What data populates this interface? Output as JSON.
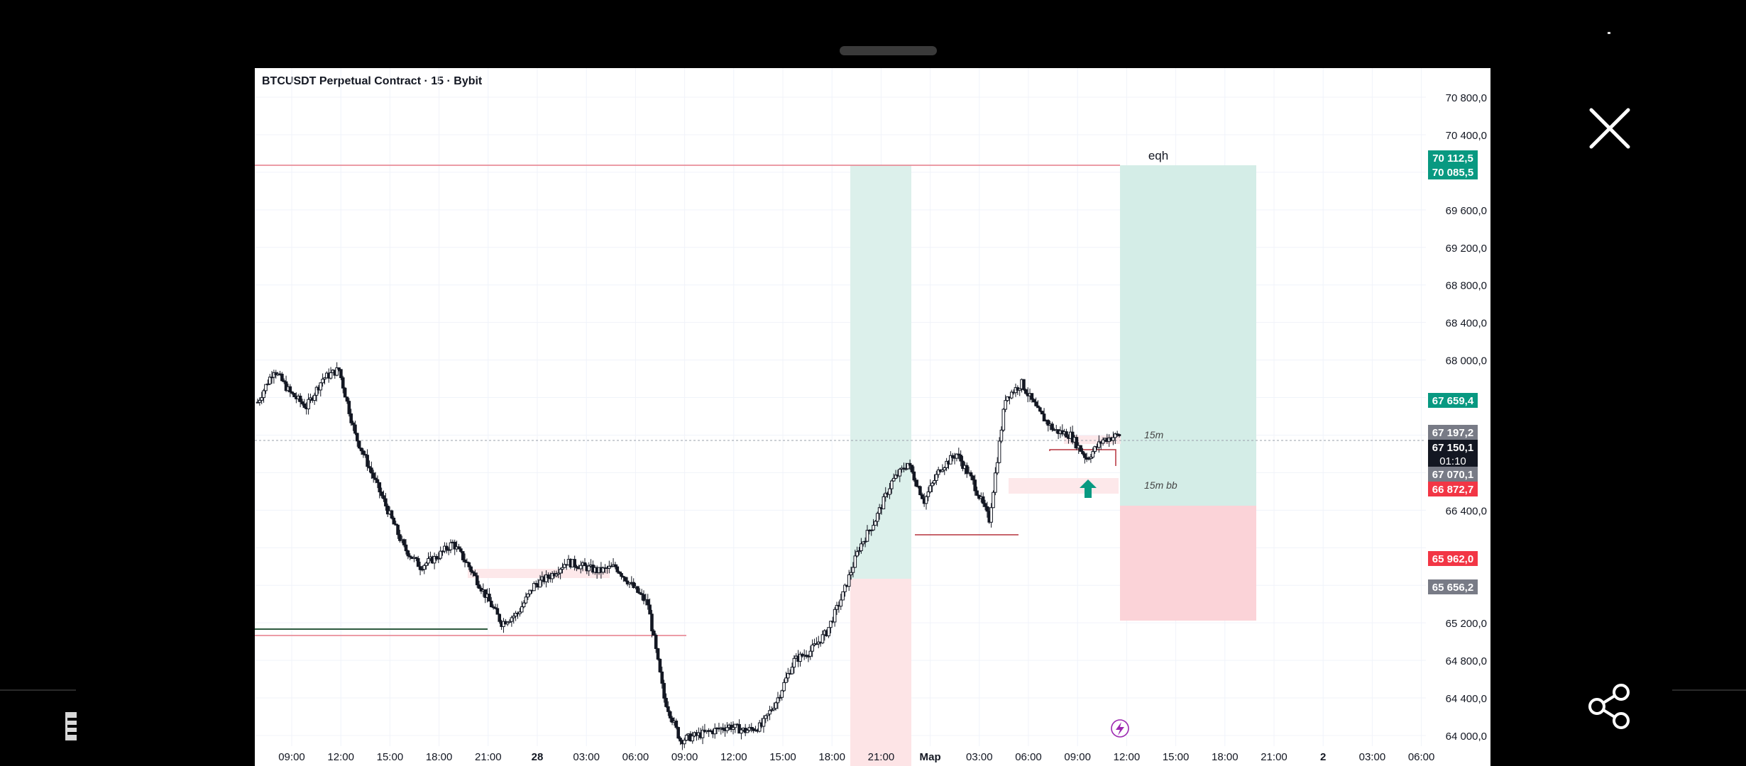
{
  "chart": {
    "title": "BTCUSDT Perpetual Contract · 15 · Bybit",
    "price_ticks": [
      "70 800,0",
      "70 400,0",
      "69 600,0",
      "69 200,0",
      "68 800,0",
      "68 400,0",
      "68 000,0",
      "66 400,0",
      "65 200,0",
      "64 800,0",
      "64 400,0",
      "64 000,0"
    ],
    "time_ticks": [
      "09:00",
      "12:00",
      "15:00",
      "18:00",
      "21:00",
      "28",
      "03:00",
      "06:00",
      "09:00",
      "12:00",
      "15:00",
      "18:00",
      "21:00",
      "Мар",
      "03:00",
      "06:00",
      "09:00",
      "12:00",
      "15:00",
      "18:00",
      "21:00",
      "2",
      "03:00",
      "06:00"
    ],
    "price_badges": [
      {
        "label": "70 112,5",
        "color": "#089981"
      },
      {
        "label": "70 085,5",
        "color": "#089981"
      },
      {
        "label": "67 659,4",
        "color": "#089981"
      },
      {
        "label": "67 197,2",
        "color": "#787b86"
      },
      {
        "label": "67 150,1",
        "color": "#131722",
        "countdown": "01:10"
      },
      {
        "label": "67 070,1",
        "color": "#787b86"
      },
      {
        "label": "66 872,7",
        "color": "#f23645"
      },
      {
        "label": "65 962,0",
        "color": "#f23645"
      },
      {
        "label": "65 656,2",
        "color": "#787b86"
      }
    ],
    "annotations": {
      "eqh": "eqh",
      "m15": "15m",
      "m15bb": "15m bb"
    },
    "colors": {
      "up": "#089981",
      "down": "#f23645",
      "candle": "#131722",
      "target_zone": "#d7efe9",
      "stop_zone": "#fadadd"
    }
  },
  "chart_data": {
    "type": "candlestick",
    "title": "BTCUSDT Perpetual Contract · 15 · Bybit",
    "y_axis_ticks": [
      64000,
      64400,
      64800,
      65200,
      65600,
      66000,
      66400,
      66800,
      67200,
      67600,
      68000,
      68400,
      68800,
      69200,
      69600,
      70000,
      70400,
      70800
    ],
    "ylim": [
      63950,
      71150
    ],
    "x_axis_ticks": [
      "09:00",
      "12:00",
      "15:00",
      "18:00",
      "21:00",
      "28",
      "03:00",
      "06:00",
      "09:00",
      "12:00",
      "15:00",
      "18:00",
      "21:00",
      "Мар",
      "03:00",
      "06:00",
      "09:00",
      "12:00",
      "15:00",
      "18:00",
      "21:00",
      "2",
      "03:00",
      "06:00"
    ],
    "close_path_approx": [
      [
        0,
        67550
      ],
      [
        8,
        67900
      ],
      [
        16,
        67650
      ],
      [
        24,
        67500
      ],
      [
        32,
        67800
      ],
      [
        40,
        67900
      ],
      [
        48,
        67200
      ],
      [
        56,
        66800
      ],
      [
        64,
        66400
      ],
      [
        72,
        66000
      ],
      [
        80,
        65800
      ],
      [
        88,
        65900
      ],
      [
        96,
        66050
      ],
      [
        104,
        65800
      ],
      [
        112,
        65500
      ],
      [
        120,
        65200
      ],
      [
        128,
        65300
      ],
      [
        136,
        65600
      ],
      [
        144,
        65700
      ],
      [
        152,
        65850
      ],
      [
        160,
        65800
      ],
      [
        168,
        65750
      ],
      [
        176,
        65800
      ],
      [
        184,
        65600
      ],
      [
        192,
        65400
      ],
      [
        200,
        64400
      ],
      [
        208,
        63950
      ],
      [
        216,
        64000
      ],
      [
        224,
        64050
      ],
      [
        232,
        64100
      ],
      [
        240,
        64050
      ],
      [
        248,
        64100
      ],
      [
        256,
        64400
      ],
      [
        264,
        64800
      ],
      [
        272,
        64900
      ],
      [
        280,
        65100
      ],
      [
        288,
        65500
      ],
      [
        296,
        66000
      ],
      [
        304,
        66300
      ],
      [
        312,
        66700
      ],
      [
        320,
        66900
      ],
      [
        328,
        66500
      ],
      [
        336,
        66850
      ],
      [
        344,
        67000
      ],
      [
        352,
        66700
      ],
      [
        360,
        66300
      ],
      [
        368,
        67600
      ],
      [
        376,
        67750
      ],
      [
        384,
        67450
      ],
      [
        392,
        67250
      ],
      [
        400,
        67200
      ],
      [
        408,
        66950
      ],
      [
        416,
        67150
      ],
      [
        424,
        67200
      ]
    ],
    "price_levels": [
      {
        "label": "70 112,5"
      },
      {
        "label": "70 085,5"
      },
      {
        "label": "67 659,4"
      },
      {
        "label": "67 197,2"
      },
      {
        "label": "67 150,1",
        "countdown": "01:10"
      },
      {
        "label": "67 070,1"
      },
      {
        "label": "66 872,7"
      },
      {
        "label": "65 962,0"
      },
      {
        "label": "65 656,2"
      }
    ],
    "annotations": [
      "eqh",
      "15m",
      "15m bb"
    ],
    "zones": [
      {
        "kind": "target",
        "from": 67197,
        "to": 70085
      },
      {
        "kind": "stop",
        "from": 65962,
        "to": 67197
      }
    ],
    "grid": true
  },
  "icons": {
    "close": "close-icon",
    "share": "share-icon",
    "left": "document-icon",
    "lightning": "lightning-icon",
    "arrow": "up-arrow-icon"
  }
}
